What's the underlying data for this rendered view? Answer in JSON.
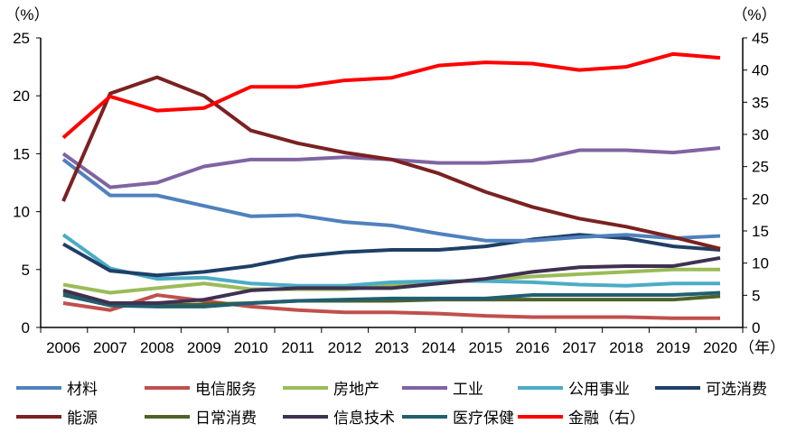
{
  "chart_data": {
    "type": "line",
    "left_unit": "（%）",
    "right_unit": "（%）",
    "x_unit": "（年）",
    "x": [
      "2006",
      "2007",
      "2008",
      "2009",
      "2010",
      "2011",
      "2012",
      "2013",
      "2014",
      "2015",
      "2016",
      "2017",
      "2018",
      "2019",
      "2020"
    ],
    "ylim_left": [
      0,
      25
    ],
    "yticks_left": [
      0,
      5,
      10,
      15,
      20,
      25
    ],
    "ylim_right": [
      0,
      45
    ],
    "yticks_right": [
      0,
      5,
      10,
      15,
      20,
      25,
      30,
      35,
      40,
      45
    ],
    "grid": false,
    "legend_position": "bottom",
    "series": [
      {
        "name": "材料",
        "color": "#4f81bd",
        "axis": "left",
        "values": [
          14.5,
          11.4,
          11.4,
          10.5,
          9.6,
          9.7,
          9.1,
          8.8,
          8.1,
          7.5,
          7.5,
          7.8,
          8.0,
          7.7,
          7.9
        ]
      },
      {
        "name": "电信服务",
        "color": "#c0504d",
        "axis": "left",
        "values": [
          2.1,
          1.5,
          2.8,
          2.3,
          1.8,
          1.5,
          1.3,
          1.3,
          1.2,
          1.0,
          0.9,
          0.9,
          0.9,
          0.8,
          0.8
        ]
      },
      {
        "name": "房地产",
        "color": "#9bbb59",
        "axis": "left",
        "values": [
          3.7,
          3.0,
          3.4,
          3.8,
          3.3,
          3.3,
          3.3,
          3.6,
          3.9,
          4.1,
          4.4,
          4.6,
          4.8,
          5.0,
          5.0
        ]
      },
      {
        "name": "工业",
        "color": "#8064a2",
        "axis": "left",
        "values": [
          15.0,
          12.1,
          12.5,
          13.9,
          14.5,
          14.5,
          14.7,
          14.5,
          14.2,
          14.2,
          14.4,
          15.3,
          15.3,
          15.1,
          15.5
        ]
      },
      {
        "name": "公用事业",
        "color": "#4bacc6",
        "axis": "left",
        "values": [
          8.0,
          5.1,
          4.2,
          4.3,
          3.8,
          3.6,
          3.6,
          3.9,
          4.0,
          4.0,
          3.9,
          3.7,
          3.6,
          3.8,
          3.8
        ]
      },
      {
        "name": "可选消费",
        "color": "#1f3f66",
        "axis": "left",
        "values": [
          7.2,
          4.9,
          4.5,
          4.8,
          5.3,
          6.1,
          6.5,
          6.7,
          6.7,
          7.0,
          7.6,
          8.0,
          7.7,
          7.0,
          6.7
        ]
      },
      {
        "name": "能源",
        "color": "#7b2121",
        "axis": "left",
        "values": [
          10.9,
          20.2,
          21.6,
          20.0,
          17.0,
          15.9,
          15.1,
          14.5,
          13.3,
          11.7,
          10.4,
          9.4,
          8.7,
          7.8,
          6.8
        ]
      },
      {
        "name": "日常消费",
        "color": "#4f6228",
        "axis": "left",
        "values": [
          3.0,
          2.0,
          1.9,
          2.0,
          2.1,
          2.3,
          2.3,
          2.3,
          2.4,
          2.4,
          2.4,
          2.4,
          2.4,
          2.4,
          2.7
        ]
      },
      {
        "name": "信息技术",
        "color": "#3f3151",
        "axis": "left",
        "values": [
          3.2,
          2.1,
          2.1,
          2.4,
          3.2,
          3.4,
          3.4,
          3.4,
          3.8,
          4.2,
          4.8,
          5.2,
          5.3,
          5.3,
          6.0
        ]
      },
      {
        "name": "医疗保健",
        "color": "#215f70",
        "axis": "left",
        "values": [
          2.8,
          1.9,
          1.8,
          1.8,
          2.1,
          2.3,
          2.4,
          2.5,
          2.5,
          2.5,
          2.8,
          2.8,
          2.8,
          2.8,
          3.0
        ]
      },
      {
        "name": "金融（右）",
        "color": "#ff0000",
        "axis": "right",
        "values": [
          29.5,
          35.9,
          33.7,
          34.1,
          37.4,
          37.4,
          38.4,
          38.8,
          40.7,
          41.2,
          41.0,
          40.0,
          40.5,
          42.5,
          41.9
        ]
      }
    ]
  }
}
